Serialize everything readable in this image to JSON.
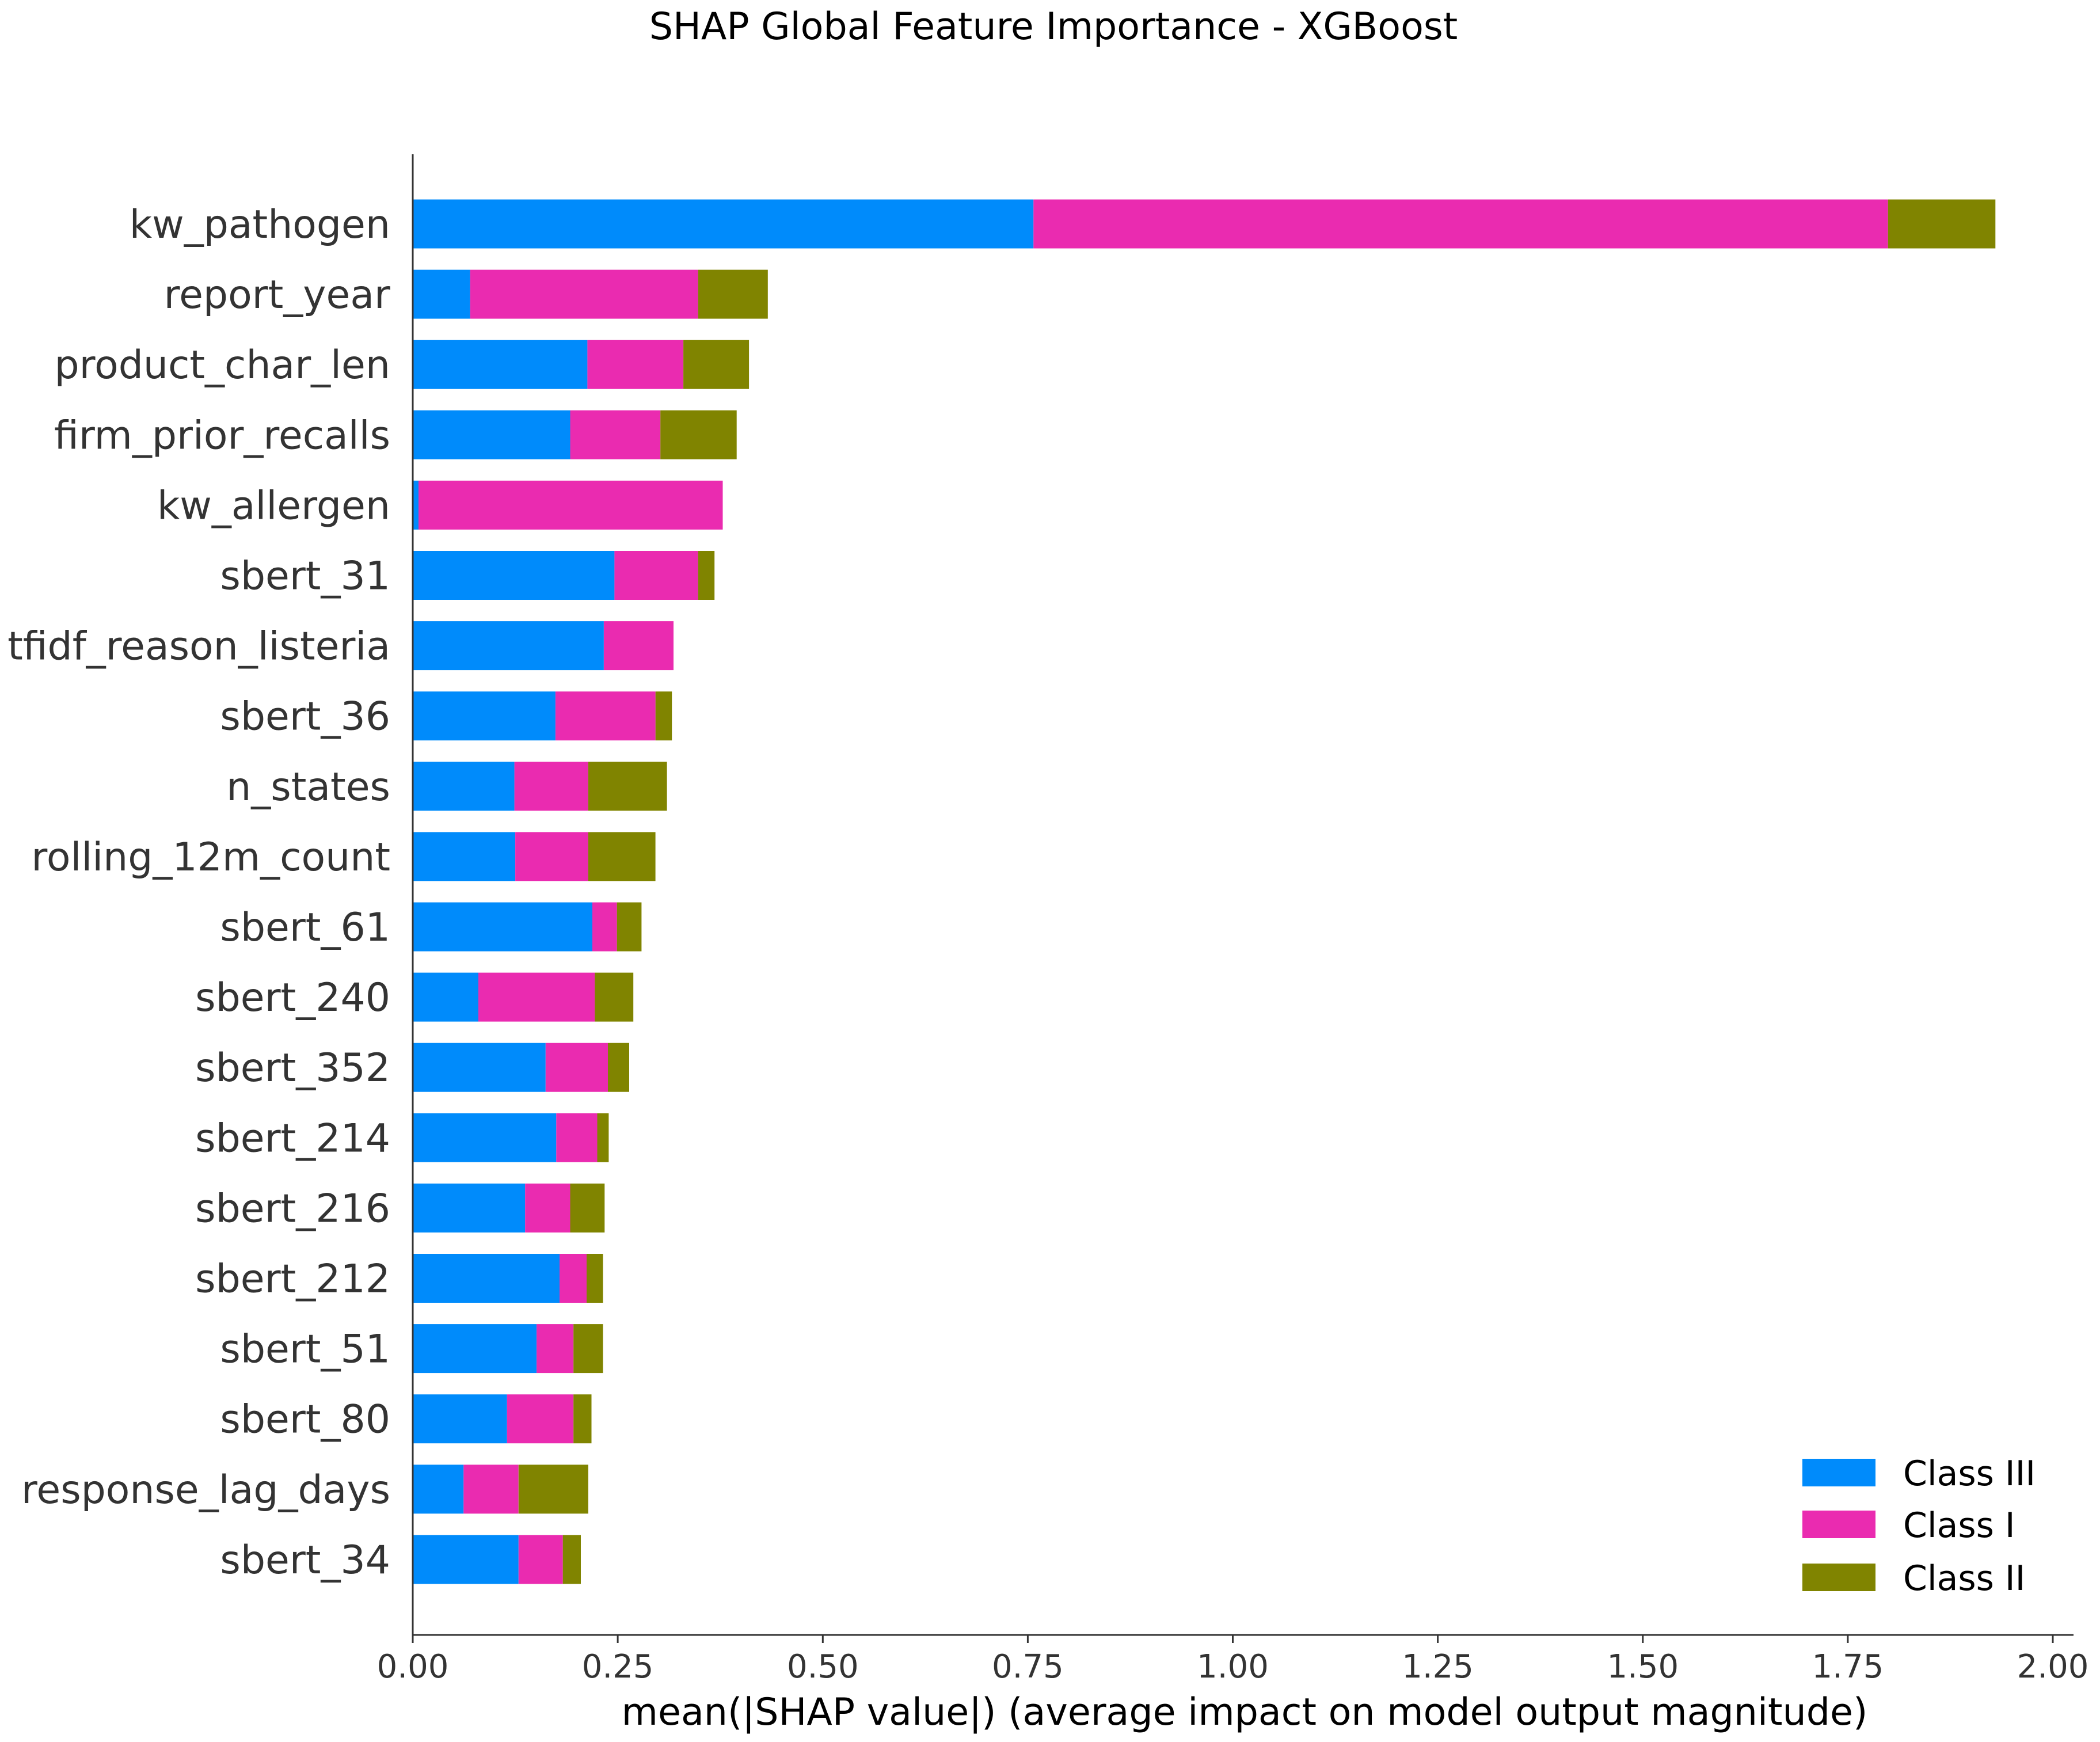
{
  "chart_data": {
    "type": "bar",
    "orientation": "horizontal",
    "stacked": true,
    "title": "SHAP Global Feature Importance - XGBoost",
    "xlabel": "mean(|SHAP value|) (average impact on model output magnitude)",
    "ylabel": "",
    "xlim": [
      0,
      2.0
    ],
    "x_ticks": [
      "0.00",
      "0.25",
      "0.50",
      "0.75",
      "1.00",
      "1.25",
      "1.50",
      "1.75",
      "2.00"
    ],
    "grid": false,
    "legend_position": "bottom-right",
    "categories": [
      "kw_pathogen",
      "report_year",
      "product_char_len",
      "firm_prior_recalls",
      "kw_allergen",
      "sbert_31",
      "tfidf_reason_listeria",
      "sbert_36",
      "n_states",
      "rolling_12m_count",
      "sbert_61",
      "sbert_240",
      "sbert_352",
      "sbert_214",
      "sbert_216",
      "sbert_212",
      "sbert_51",
      "sbert_80",
      "response_lag_days",
      "sbert_34"
    ],
    "series": [
      {
        "name": "Class III",
        "color": "#008bfb",
        "values": [
          0.757,
          0.07,
          0.213,
          0.192,
          0.007,
          0.246,
          0.233,
          0.174,
          0.124,
          0.125,
          0.219,
          0.08,
          0.162,
          0.175,
          0.137,
          0.179,
          0.151,
          0.115,
          0.062,
          0.129
        ]
      },
      {
        "name": "Class I",
        "color": "#ea2bb0",
        "values": [
          1.042,
          0.278,
          0.117,
          0.11,
          0.371,
          0.102,
          0.085,
          0.122,
          0.09,
          0.089,
          0.03,
          0.142,
          0.076,
          0.05,
          0.055,
          0.033,
          0.045,
          0.081,
          0.067,
          0.054
        ]
      },
      {
        "name": "Class II",
        "color": "#808400",
        "values": [
          0.131,
          0.085,
          0.08,
          0.093,
          0.0,
          0.02,
          0.0,
          0.02,
          0.096,
          0.082,
          0.03,
          0.047,
          0.026,
          0.014,
          0.042,
          0.02,
          0.036,
          0.022,
          0.085,
          0.022
        ]
      }
    ]
  }
}
